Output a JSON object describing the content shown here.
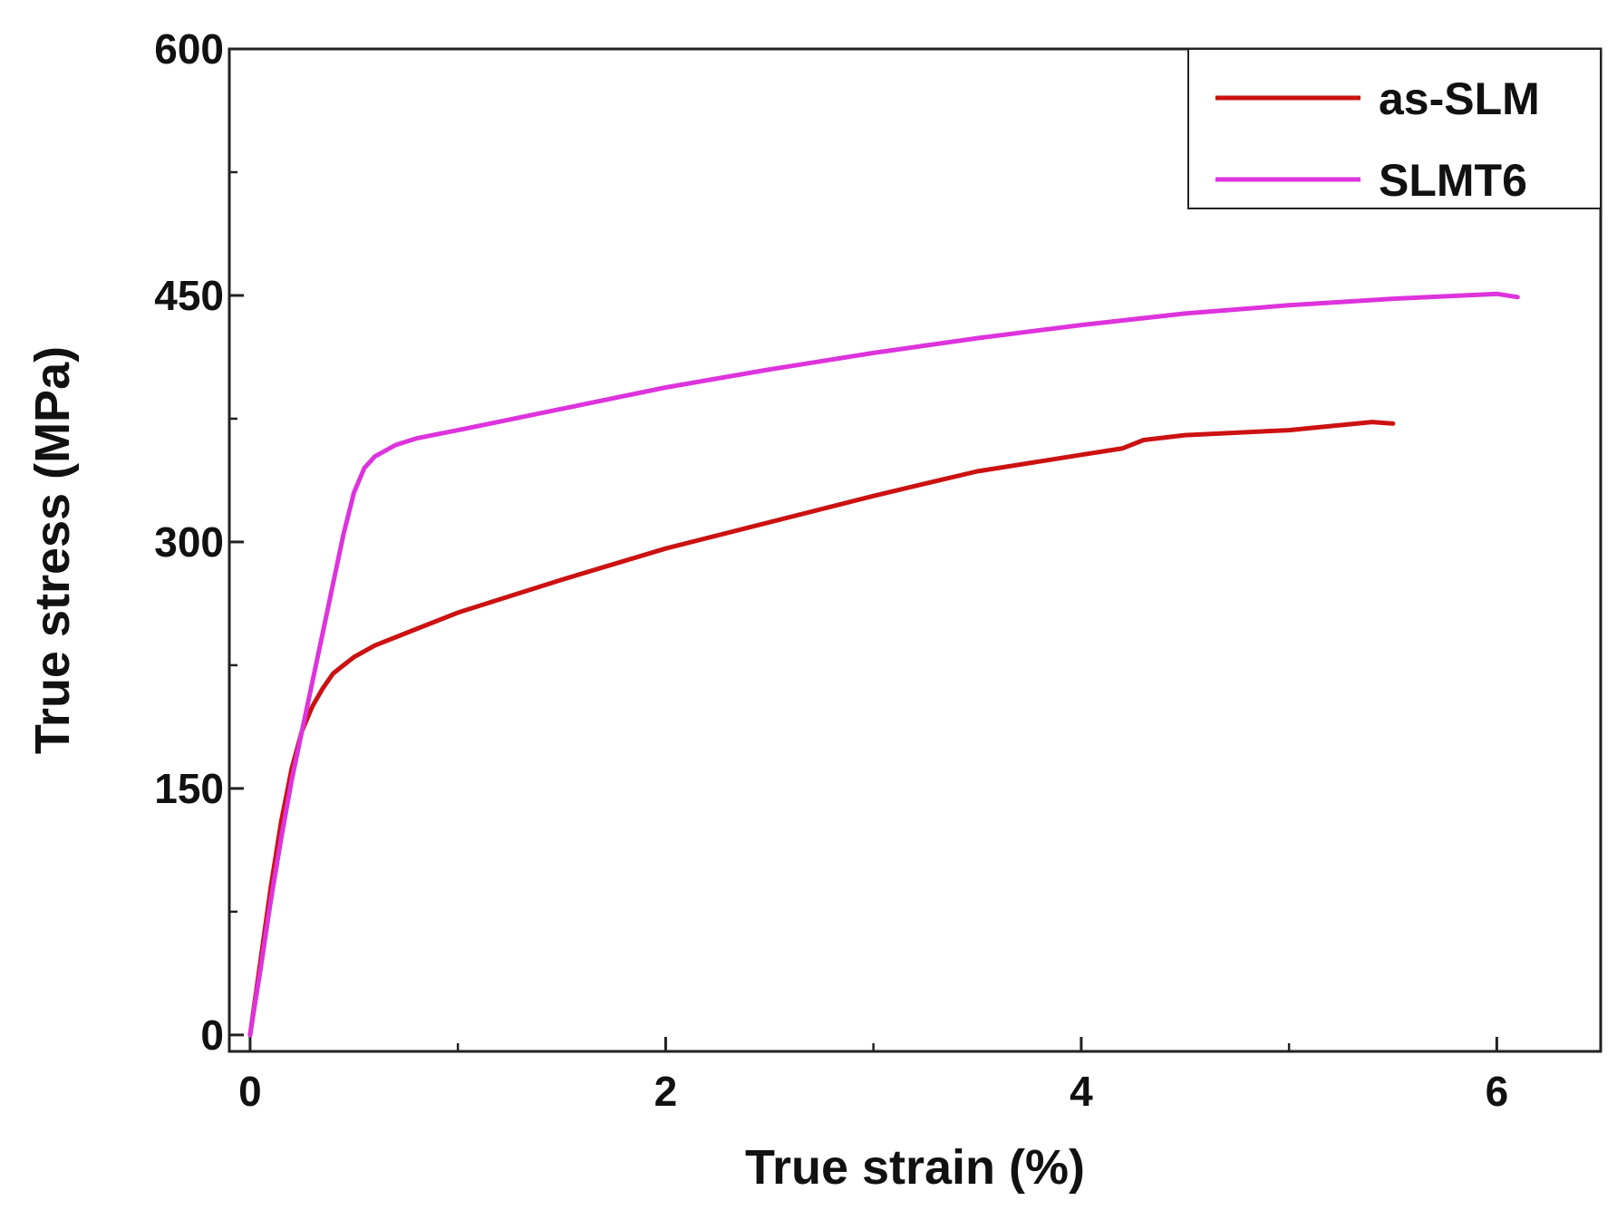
{
  "chart_data": {
    "type": "line",
    "title": "",
    "xlabel": "True strain (%)",
    "ylabel": "True stress (MPa)",
    "xlim": [
      -0.1,
      6.5
    ],
    "ylim": [
      -10,
      600
    ],
    "xticks": [
      0,
      2,
      4,
      6
    ],
    "yticks": [
      0,
      150,
      300,
      450,
      600
    ],
    "xticks_minor": [
      1,
      3,
      5
    ],
    "yticks_minor": [
      75,
      225,
      375,
      525
    ],
    "grid": false,
    "legend_position": "top-right",
    "series": [
      {
        "name": "as-SLM",
        "color": "#cc1111",
        "x": [
          0,
          0.05,
          0.1,
          0.15,
          0.2,
          0.25,
          0.3,
          0.35,
          0.4,
          0.5,
          0.6,
          0.8,
          1.0,
          1.2,
          1.5,
          2.0,
          2.5,
          3.0,
          3.3,
          3.5,
          4.0,
          4.2,
          4.3,
          4.5,
          5.0,
          5.4,
          5.5
        ],
        "y": [
          0,
          45,
          90,
          130,
          162,
          185,
          200,
          211,
          220,
          230,
          237,
          247,
          257,
          265,
          277,
          296,
          312,
          328,
          337,
          343,
          353,
          357,
          362,
          365,
          368,
          373,
          372
        ]
      },
      {
        "name": "SLMT6",
        "color": "#dd33dd",
        "x": [
          0,
          0.05,
          0.1,
          0.15,
          0.2,
          0.25,
          0.3,
          0.35,
          0.4,
          0.45,
          0.5,
          0.55,
          0.6,
          0.7,
          0.8,
          1.0,
          1.5,
          2.0,
          2.5,
          3.0,
          3.5,
          4.0,
          4.5,
          5.0,
          5.5,
          6.0,
          6.1
        ],
        "y": [
          0,
          40,
          82,
          120,
          155,
          185,
          215,
          245,
          275,
          305,
          330,
          345,
          352,
          359,
          363,
          368,
          381,
          394,
          405,
          415,
          424,
          432,
          439,
          444,
          448,
          451,
          449
        ]
      }
    ]
  }
}
